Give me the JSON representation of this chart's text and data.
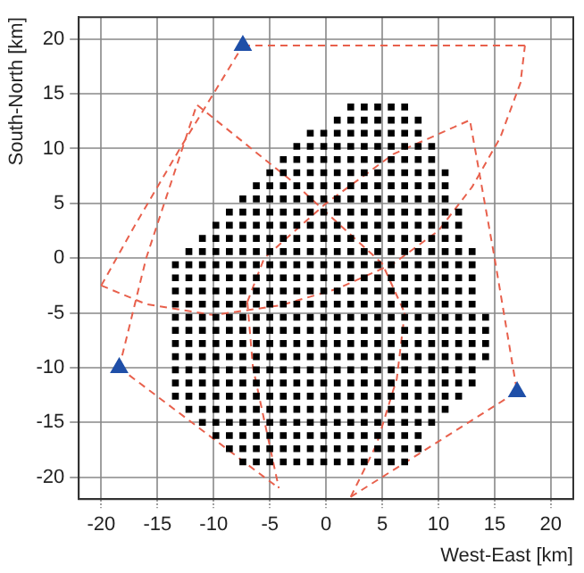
{
  "chart_data": {
    "type": "scatter",
    "xlabel": "West-East [km]",
    "ylabel": "South-North [km]",
    "xlim": [
      -22,
      22
    ],
    "ylim": [
      -22,
      22
    ],
    "xticks": [
      -20,
      -15,
      -10,
      -5,
      0,
      5,
      10,
      15,
      20
    ],
    "yticks": [
      -20,
      -15,
      -10,
      -5,
      0,
      5,
      10,
      15,
      20
    ],
    "grid": true,
    "series": [
      {
        "type": "line",
        "color": "#e8604c",
        "marker": "none",
        "line_style": "dashed",
        "x": [
          -7.4,
          17.7
        ],
        "values": [
          19.4,
          19.4
        ]
      },
      {
        "type": "line",
        "color": "#e8604c",
        "marker": "none",
        "line_style": "dashed",
        "x": [
          -20,
          -16,
          -10,
          -4,
          1,
          6,
          10,
          13,
          15.5,
          17.3,
          17.7
        ],
        "values": [
          -2.5,
          -4.2,
          -5.2,
          -4.3,
          -2.8,
          -0.5,
          2.5,
          6.5,
          11,
          16,
          19.4
        ]
      },
      {
        "type": "line",
        "color": "#e8604c",
        "marker": "none",
        "line_style": "dashed",
        "x": [
          -20,
          -17,
          -13,
          -7.4
        ],
        "values": [
          -2.5,
          3,
          10,
          19.4
        ]
      },
      {
        "type": "line",
        "color": "#e8604c",
        "marker": "none",
        "line_style": "dashed",
        "x": [
          -18.4,
          -16,
          -11.5,
          -3,
          5,
          7
        ],
        "values": [
          -10,
          0,
          14,
          7,
          -0.5,
          -5
        ]
      },
      {
        "type": "line",
        "color": "#e8604c",
        "marker": "none",
        "line_style": "dashed",
        "x": [
          2.2,
          4.5,
          6.3,
          7
        ],
        "values": [
          -21.8,
          -17,
          -11,
          -5
        ]
      },
      {
        "type": "line",
        "color": "#e8604c",
        "marker": "none",
        "line_style": "dashed",
        "x": [
          2.2,
          17
        ],
        "values": [
          -21.8,
          -12.2
        ]
      },
      {
        "type": "line",
        "color": "#e8604c",
        "marker": "none",
        "line_style": "dashed",
        "x": [
          -18.4,
          -4.2
        ],
        "values": [
          -10,
          -21
        ]
      },
      {
        "type": "line",
        "color": "#e8604c",
        "marker": "none",
        "line_style": "dashed",
        "x": [
          -7,
          -6.5,
          -4.2
        ],
        "values": [
          -4,
          -10,
          -21
        ]
      },
      {
        "type": "line",
        "color": "#e8604c",
        "marker": "none",
        "line_style": "dashed",
        "x": [
          -7,
          -5.5,
          0,
          6,
          12.8,
          15,
          17
        ],
        "values": [
          -4,
          0,
          5,
          9.5,
          12.6,
          0,
          -12.2
        ]
      },
      {
        "type": "scatter",
        "color": "#000000",
        "marker": "square",
        "x": [
          2.2,
          3.4,
          4.6,
          5.8,
          7.0
        ],
        "values": [
          13.8,
          13.8,
          13.8,
          13.8,
          13.8
        ]
      },
      {
        "type": "scatter",
        "color": "#000000",
        "marker": "square",
        "x": [
          1.0,
          2.2,
          3.4,
          4.6,
          5.8,
          7.0,
          8.2
        ],
        "values": [
          12.6,
          12.6,
          12.6,
          12.6,
          12.6,
          12.6,
          12.6
        ]
      },
      {
        "type": "scatter",
        "color": "#000000",
        "marker": "square",
        "x": [
          -1.4,
          -0.2,
          1.0,
          2.2,
          3.4,
          4.6,
          5.8,
          7.0,
          8.2
        ],
        "values": [
          11.4,
          11.4,
          11.4,
          11.4,
          11.4,
          11.4,
          11.4,
          11.4,
          11.4
        ]
      },
      {
        "type": "scatter",
        "color": "#000000",
        "marker": "square",
        "x": [
          -2.6,
          -1.4,
          -0.2,
          1.0,
          2.2,
          3.4,
          4.6,
          5.8,
          7.0,
          8.2,
          9.4
        ],
        "values": [
          10.2,
          10.2,
          10.2,
          10.2,
          10.2,
          10.2,
          10.2,
          10.2,
          10.2,
          10.2,
          10.2
        ]
      },
      {
        "type": "scatter",
        "color": "#000000",
        "marker": "square",
        "x": [
          -3.8,
          -2.6,
          -1.4,
          -0.2,
          1.0,
          2.2,
          3.4,
          4.6,
          5.8,
          7.0,
          8.2,
          9.4
        ],
        "values": [
          9.0,
          9.0,
          9.0,
          9.0,
          9.0,
          9.0,
          9.0,
          9.0,
          9.0,
          9.0,
          9.0,
          9.0
        ]
      },
      {
        "type": "scatter",
        "color": "#000000",
        "marker": "square",
        "x": [
          -5.0,
          -3.8,
          -2.6,
          -1.4,
          -0.2,
          1.0,
          2.2,
          3.4,
          4.6,
          5.8,
          7.0,
          8.2,
          9.4,
          10.6
        ],
        "values": [
          7.8,
          7.8,
          7.8,
          7.8,
          7.8,
          7.8,
          7.8,
          7.8,
          7.8,
          7.8,
          7.8,
          7.8,
          7.8,
          7.8
        ]
      },
      {
        "type": "scatter",
        "color": "#000000",
        "marker": "square",
        "x": [
          -6.2,
          -5.0,
          -3.8,
          -2.6,
          -1.4,
          -0.2,
          1.0,
          2.2,
          3.4,
          4.6,
          5.8,
          7.0,
          8.2,
          9.4,
          10.6
        ],
        "values": [
          6.6,
          6.6,
          6.6,
          6.6,
          6.6,
          6.6,
          6.6,
          6.6,
          6.6,
          6.6,
          6.6,
          6.6,
          6.6,
          6.6,
          6.6
        ]
      },
      {
        "type": "scatter",
        "color": "#000000",
        "marker": "square",
        "x": [
          -7.4,
          -6.2,
          -5.0,
          -3.8,
          -2.6,
          -1.4,
          -0.2,
          1.0,
          2.2,
          3.4,
          4.6,
          5.8,
          7.0,
          8.2,
          9.4,
          10.6
        ],
        "values": [
          5.4,
          5.4,
          5.4,
          5.4,
          5.4,
          5.4,
          5.4,
          5.4,
          5.4,
          5.4,
          5.4,
          5.4,
          5.4,
          5.4,
          5.4,
          5.4
        ]
      },
      {
        "type": "scatter",
        "color": "#000000",
        "marker": "square",
        "x": [
          -8.6,
          -7.4,
          -6.2,
          -5.0,
          -3.8,
          -2.6,
          -1.4,
          -0.2,
          1.0,
          2.2,
          3.4,
          4.6,
          5.8,
          7.0,
          8.2,
          9.4,
          10.6,
          11.8
        ],
        "values": [
          4.2,
          4.2,
          4.2,
          4.2,
          4.2,
          4.2,
          4.2,
          4.2,
          4.2,
          4.2,
          4.2,
          4.2,
          4.2,
          4.2,
          4.2,
          4.2,
          4.2,
          4.2
        ]
      },
      {
        "type": "scatter",
        "color": "#000000",
        "marker": "square",
        "x": [
          -9.8,
          -8.6,
          -7.4,
          -6.2,
          -5.0,
          -3.8,
          -2.6,
          -1.4,
          -0.2,
          1.0,
          2.2,
          3.4,
          4.6,
          5.8,
          7.0,
          8.2,
          9.4,
          10.6,
          11.8
        ],
        "values": [
          3.0,
          3.0,
          3.0,
          3.0,
          3.0,
          3.0,
          3.0,
          3.0,
          3.0,
          3.0,
          3.0,
          3.0,
          3.0,
          3.0,
          3.0,
          3.0,
          3.0,
          3.0,
          3.0
        ]
      },
      {
        "type": "scatter",
        "color": "#000000",
        "marker": "square",
        "x": [
          -11.0,
          -9.8,
          -8.6,
          -7.4,
          -6.2,
          -5.0,
          -3.8,
          -2.6,
          -1.4,
          -0.2,
          1.0,
          2.2,
          3.4,
          4.6,
          5.8,
          7.0,
          8.2,
          9.4,
          10.6,
          11.8
        ],
        "values": [
          1.8,
          1.8,
          1.8,
          1.8,
          1.8,
          1.8,
          1.8,
          1.8,
          1.8,
          1.8,
          1.8,
          1.8,
          1.8,
          1.8,
          1.8,
          1.8,
          1.8,
          1.8,
          1.8,
          1.8
        ]
      },
      {
        "type": "scatter",
        "color": "#000000",
        "marker": "square",
        "x": [
          -12.2,
          -11.0,
          -9.8,
          -8.6,
          -7.4,
          -6.2,
          -5.0,
          -3.8,
          -2.6,
          -1.4,
          -0.2,
          1.0,
          2.2,
          3.4,
          4.6,
          5.8,
          7.0,
          8.2,
          9.4,
          10.6,
          11.8,
          13.0
        ],
        "values": [
          0.6,
          0.6,
          0.6,
          0.6,
          0.6,
          0.6,
          0.6,
          0.6,
          0.6,
          0.6,
          0.6,
          0.6,
          0.6,
          0.6,
          0.6,
          0.6,
          0.6,
          0.6,
          0.6,
          0.6,
          0.6,
          0.6
        ]
      },
      {
        "type": "scatter",
        "color": "#000000",
        "marker": "square",
        "x": [
          -13.4,
          -12.2,
          -11.0,
          -9.8,
          -8.6,
          -7.4,
          -6.2,
          -5.0,
          -3.8,
          -2.6,
          -1.4,
          -0.2,
          1.0,
          2.2,
          3.4,
          4.6,
          5.8,
          7.0,
          8.2,
          9.4,
          10.6,
          11.8,
          13.0
        ],
        "values": [
          -0.6,
          -0.6,
          -0.6,
          -0.6,
          -0.6,
          -0.6,
          -0.6,
          -0.6,
          -0.6,
          -0.6,
          -0.6,
          -0.6,
          -0.6,
          -0.6,
          -0.6,
          -0.6,
          -0.6,
          -0.6,
          -0.6,
          -0.6,
          -0.6,
          -0.6,
          -0.6
        ]
      },
      {
        "type": "scatter",
        "color": "#000000",
        "marker": "square",
        "x": [
          -13.4,
          -12.2,
          -11.0,
          -9.8,
          -8.6,
          -7.4,
          -6.2,
          -5.0,
          -3.8,
          -2.6,
          -1.4,
          -0.2,
          1.0,
          2.2,
          3.4,
          4.6,
          5.8,
          7.0,
          8.2,
          9.4,
          10.6,
          11.8,
          13.0
        ],
        "values": [
          -1.8,
          -1.8,
          -1.8,
          -1.8,
          -1.8,
          -1.8,
          -1.8,
          -1.8,
          -1.8,
          -1.8,
          -1.8,
          -1.8,
          -1.8,
          -1.8,
          -1.8,
          -1.8,
          -1.8,
          -1.8,
          -1.8,
          -1.8,
          -1.8,
          -1.8,
          -1.8
        ]
      },
      {
        "type": "scatter",
        "color": "#000000",
        "marker": "square",
        "x": [
          -13.4,
          -12.2,
          -11.0,
          -9.8,
          -8.6,
          -7.4,
          -6.2,
          -5.0,
          -3.8,
          -2.6,
          -1.4,
          -0.2,
          1.0,
          2.2,
          3.4,
          4.6,
          5.8,
          7.0,
          8.2,
          9.4,
          10.6,
          11.8,
          13.0
        ],
        "values": [
          -3.0,
          -3.0,
          -3.0,
          -3.0,
          -3.0,
          -3.0,
          -3.0,
          -3.0,
          -3.0,
          -3.0,
          -3.0,
          -3.0,
          -3.0,
          -3.0,
          -3.0,
          -3.0,
          -3.0,
          -3.0,
          -3.0,
          -3.0,
          -3.0,
          -3.0,
          -3.0
        ]
      },
      {
        "type": "scatter",
        "color": "#000000",
        "marker": "square",
        "x": [
          -13.4,
          -12.2,
          -11.0,
          -9.8,
          -8.6,
          -7.4,
          -6.2,
          -5.0,
          -3.8,
          -2.6,
          -1.4,
          -0.2,
          1.0,
          2.2,
          3.4,
          4.6,
          5.8,
          7.0,
          8.2,
          9.4,
          10.6,
          11.8,
          13.0
        ],
        "values": [
          -4.2,
          -4.2,
          -4.2,
          -4.2,
          -4.2,
          -4.2,
          -4.2,
          -4.2,
          -4.2,
          -4.2,
          -4.2,
          -4.2,
          -4.2,
          -4.2,
          -4.2,
          -4.2,
          -4.2,
          -4.2,
          -4.2,
          -4.2,
          -4.2,
          -4.2,
          -4.2
        ]
      },
      {
        "type": "scatter",
        "color": "#000000",
        "marker": "square",
        "x": [
          -13.4,
          -12.2,
          -11.0,
          -9.8,
          -8.6,
          -7.4,
          -6.2,
          -5.0,
          -3.8,
          -2.6,
          -1.4,
          -0.2,
          1.0,
          2.2,
          3.4,
          4.6,
          5.8,
          7.0,
          8.2,
          9.4,
          10.6,
          11.8,
          13.0,
          14.2
        ],
        "values": [
          -5.4,
          -5.4,
          -5.4,
          -5.4,
          -5.4,
          -5.4,
          -5.4,
          -5.4,
          -5.4,
          -5.4,
          -5.4,
          -5.4,
          -5.4,
          -5.4,
          -5.4,
          -5.4,
          -5.4,
          -5.4,
          -5.4,
          -5.4,
          -5.4,
          -5.4,
          -5.4,
          -5.4
        ]
      },
      {
        "type": "scatter",
        "color": "#000000",
        "marker": "square",
        "x": [
          -13.4,
          -12.2,
          -11.0,
          -9.8,
          -8.6,
          -7.4,
          -6.2,
          -5.0,
          -3.8,
          -2.6,
          -1.4,
          -0.2,
          1.0,
          2.2,
          3.4,
          4.6,
          5.8,
          7.0,
          8.2,
          9.4,
          10.6,
          11.8,
          13.0,
          14.2
        ],
        "values": [
          -6.6,
          -6.6,
          -6.6,
          -6.6,
          -6.6,
          -6.6,
          -6.6,
          -6.6,
          -6.6,
          -6.6,
          -6.6,
          -6.6,
          -6.6,
          -6.6,
          -6.6,
          -6.6,
          -6.6,
          -6.6,
          -6.6,
          -6.6,
          -6.6,
          -6.6,
          -6.6,
          -6.6
        ]
      },
      {
        "type": "scatter",
        "color": "#000000",
        "marker": "square",
        "x": [
          -13.4,
          -12.2,
          -11.0,
          -9.8,
          -8.6,
          -7.4,
          -6.2,
          -5.0,
          -3.8,
          -2.6,
          -1.4,
          -0.2,
          1.0,
          2.2,
          3.4,
          4.6,
          5.8,
          7.0,
          8.2,
          9.4,
          10.6,
          11.8,
          13.0,
          14.2
        ],
        "values": [
          -7.8,
          -7.8,
          -7.8,
          -7.8,
          -7.8,
          -7.8,
          -7.8,
          -7.8,
          -7.8,
          -7.8,
          -7.8,
          -7.8,
          -7.8,
          -7.8,
          -7.8,
          -7.8,
          -7.8,
          -7.8,
          -7.8,
          -7.8,
          -7.8,
          -7.8,
          -7.8,
          -7.8
        ]
      },
      {
        "type": "scatter",
        "color": "#000000",
        "marker": "square",
        "x": [
          -13.4,
          -12.2,
          -11.0,
          -9.8,
          -8.6,
          -7.4,
          -6.2,
          -5.0,
          -3.8,
          -2.6,
          -1.4,
          -0.2,
          1.0,
          2.2,
          3.4,
          4.6,
          5.8,
          7.0,
          8.2,
          9.4,
          10.6,
          11.8,
          13.0,
          14.2
        ],
        "values": [
          -9.0,
          -9.0,
          -9.0,
          -9.0,
          -9.0,
          -9.0,
          -9.0,
          -9.0,
          -9.0,
          -9.0,
          -9.0,
          -9.0,
          -9.0,
          -9.0,
          -9.0,
          -9.0,
          -9.0,
          -9.0,
          -9.0,
          -9.0,
          -9.0,
          -9.0,
          -9.0,
          -9.0
        ]
      },
      {
        "type": "scatter",
        "color": "#000000",
        "marker": "square",
        "x": [
          -13.4,
          -12.2,
          -11.0,
          -9.8,
          -8.6,
          -7.4,
          -6.2,
          -5.0,
          -3.8,
          -2.6,
          -1.4,
          -0.2,
          1.0,
          2.2,
          3.4,
          4.6,
          5.8,
          7.0,
          8.2,
          9.4,
          10.6,
          11.8,
          13.0
        ],
        "values": [
          -10.2,
          -10.2,
          -10.2,
          -10.2,
          -10.2,
          -10.2,
          -10.2,
          -10.2,
          -10.2,
          -10.2,
          -10.2,
          -10.2,
          -10.2,
          -10.2,
          -10.2,
          -10.2,
          -10.2,
          -10.2,
          -10.2,
          -10.2,
          -10.2,
          -10.2,
          -10.2
        ]
      },
      {
        "type": "scatter",
        "color": "#000000",
        "marker": "square",
        "x": [
          -13.4,
          -12.2,
          -11.0,
          -9.8,
          -8.6,
          -7.4,
          -6.2,
          -5.0,
          -3.8,
          -2.6,
          -1.4,
          -0.2,
          1.0,
          2.2,
          3.4,
          4.6,
          5.8,
          7.0,
          8.2,
          9.4,
          10.6,
          11.8,
          13.0
        ],
        "values": [
          -11.4,
          -11.4,
          -11.4,
          -11.4,
          -11.4,
          -11.4,
          -11.4,
          -11.4,
          -11.4,
          -11.4,
          -11.4,
          -11.4,
          -11.4,
          -11.4,
          -11.4,
          -11.4,
          -11.4,
          -11.4,
          -11.4,
          -11.4,
          -11.4,
          -11.4,
          -11.4
        ]
      },
      {
        "type": "scatter",
        "color": "#000000",
        "marker": "square",
        "x": [
          -13.4,
          -12.2,
          -11.0,
          -9.8,
          -8.6,
          -7.4,
          -6.2,
          -5.0,
          -3.8,
          -2.6,
          -1.4,
          -0.2,
          1.0,
          2.2,
          3.4,
          4.6,
          5.8,
          7.0,
          8.2,
          9.4,
          10.6,
          11.8
        ],
        "values": [
          -12.6,
          -12.6,
          -12.6,
          -12.6,
          -12.6,
          -12.6,
          -12.6,
          -12.6,
          -12.6,
          -12.6,
          -12.6,
          -12.6,
          -12.6,
          -12.6,
          -12.6,
          -12.6,
          -12.6,
          -12.6,
          -12.6,
          -12.6,
          -12.6,
          -12.6
        ]
      },
      {
        "type": "scatter",
        "color": "#000000",
        "marker": "square",
        "x": [
          -12.2,
          -11.0,
          -9.8,
          -8.6,
          -7.4,
          -6.2,
          -5.0,
          -3.8,
          -2.6,
          -1.4,
          -0.2,
          1.0,
          2.2,
          3.4,
          4.6,
          5.8,
          7.0,
          8.2,
          9.4,
          10.6
        ],
        "values": [
          -13.8,
          -13.8,
          -13.8,
          -13.8,
          -13.8,
          -13.8,
          -13.8,
          -13.8,
          -13.8,
          -13.8,
          -13.8,
          -13.8,
          -13.8,
          -13.8,
          -13.8,
          -13.8,
          -13.8,
          -13.8,
          -13.8,
          -13.8
        ]
      },
      {
        "type": "scatter",
        "color": "#000000",
        "marker": "square",
        "x": [
          -11.0,
          -9.8,
          -8.6,
          -7.4,
          -6.2,
          -5.0,
          -3.8,
          -2.6,
          -1.4,
          -0.2,
          1.0,
          2.2,
          3.4,
          4.6,
          5.8,
          7.0,
          8.2,
          9.4
        ],
        "values": [
          -15.0,
          -15.0,
          -15.0,
          -15.0,
          -15.0,
          -15.0,
          -15.0,
          -15.0,
          -15.0,
          -15.0,
          -15.0,
          -15.0,
          -15.0,
          -15.0,
          -15.0,
          -15.0,
          -15.0,
          -15.0
        ]
      },
      {
        "type": "scatter",
        "color": "#000000",
        "marker": "square",
        "x": [
          -9.8,
          -8.6,
          -7.4,
          -6.2,
          -5.0,
          -3.8,
          -2.6,
          -1.4,
          -0.2,
          1.0,
          2.2,
          3.4,
          4.6,
          5.8,
          7.0,
          8.2
        ],
        "values": [
          -16.2,
          -16.2,
          -16.2,
          -16.2,
          -16.2,
          -16.2,
          -16.2,
          -16.2,
          -16.2,
          -16.2,
          -16.2,
          -16.2,
          -16.2,
          -16.2,
          -16.2,
          -16.2
        ]
      },
      {
        "type": "scatter",
        "color": "#000000",
        "marker": "square",
        "x": [
          -8.6,
          -7.4,
          -6.2,
          -5.0,
          -3.8,
          -2.6,
          -1.4,
          -0.2,
          1.0,
          2.2,
          3.4,
          4.6,
          5.8,
          7.0,
          8.2
        ],
        "values": [
          -17.4,
          -17.4,
          -17.4,
          -17.4,
          -17.4,
          -17.4,
          -17.4,
          -17.4,
          -17.4,
          -17.4,
          -17.4,
          -17.4,
          -17.4,
          -17.4,
          -17.4
        ]
      },
      {
        "type": "scatter",
        "color": "#000000",
        "marker": "square",
        "x": [
          -7.4,
          -6.2,
          -5.0,
          -3.8,
          -2.6,
          -1.4,
          -0.2,
          1.0,
          2.2,
          3.4,
          4.6,
          5.8,
          7.0
        ],
        "values": [
          -18.6,
          -18.6,
          -18.6,
          -18.6,
          -18.6,
          -18.6,
          -18.6,
          -18.6,
          -18.6,
          -18.6,
          -18.6,
          -18.6,
          -18.6
        ]
      },
      {
        "type": "scatter",
        "color": "#1f4fa8",
        "marker": "triangle",
        "x": [
          -7.4,
          -18.4,
          17
        ],
        "values": [
          19.4,
          -10,
          -12.2
        ]
      }
    ]
  }
}
